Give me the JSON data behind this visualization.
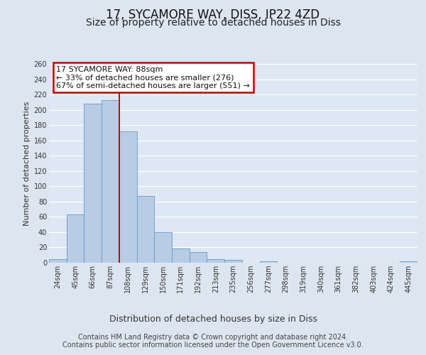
{
  "title": "17, SYCAMORE WAY, DISS, IP22 4ZD",
  "subtitle": "Size of property relative to detached houses in Diss",
  "xlabel": "Distribution of detached houses by size in Diss",
  "ylabel": "Number of detached properties",
  "bin_labels": [
    "24sqm",
    "45sqm",
    "66sqm",
    "87sqm",
    "108sqm",
    "129sqm",
    "150sqm",
    "171sqm",
    "192sqm",
    "213sqm",
    "235sqm",
    "256sqm",
    "277sqm",
    "298sqm",
    "319sqm",
    "340sqm",
    "361sqm",
    "382sqm",
    "403sqm",
    "424sqm",
    "445sqm"
  ],
  "bar_values": [
    5,
    63,
    208,
    213,
    172,
    87,
    40,
    19,
    14,
    5,
    4,
    0,
    2,
    0,
    0,
    0,
    0,
    0,
    0,
    0,
    2
  ],
  "bar_color": "#b8cce4",
  "bar_edge_color": "#6699cc",
  "bg_color": "#dde6f0",
  "plot_bg_color": "#dde8f4",
  "grid_color": "#ffffff",
  "vline_color": "#cc0000",
  "vline_pos": 3.5,
  "annotation_title": "17 SYCAMORE WAY: 88sqm",
  "annotation_line1": "← 33% of detached houses are smaller (276)",
  "annotation_line2": "67% of semi-detached houses are larger (551) →",
  "annotation_box_color": "#ffffff",
  "annotation_border_color": "#cc0000",
  "ylim": [
    0,
    260
  ],
  "yticks": [
    0,
    20,
    40,
    60,
    80,
    100,
    120,
    140,
    160,
    180,
    200,
    220,
    240,
    260
  ],
  "footer_line1": "Contains HM Land Registry data © Crown copyright and database right 2024.",
  "footer_line2": "Contains public sector information licensed under the Open Government Licence v3.0.",
  "title_fontsize": 12,
  "subtitle_fontsize": 10,
  "xlabel_fontsize": 9,
  "ylabel_fontsize": 8,
  "tick_fontsize": 7,
  "footer_fontsize": 7,
  "annotation_fontsize": 8
}
